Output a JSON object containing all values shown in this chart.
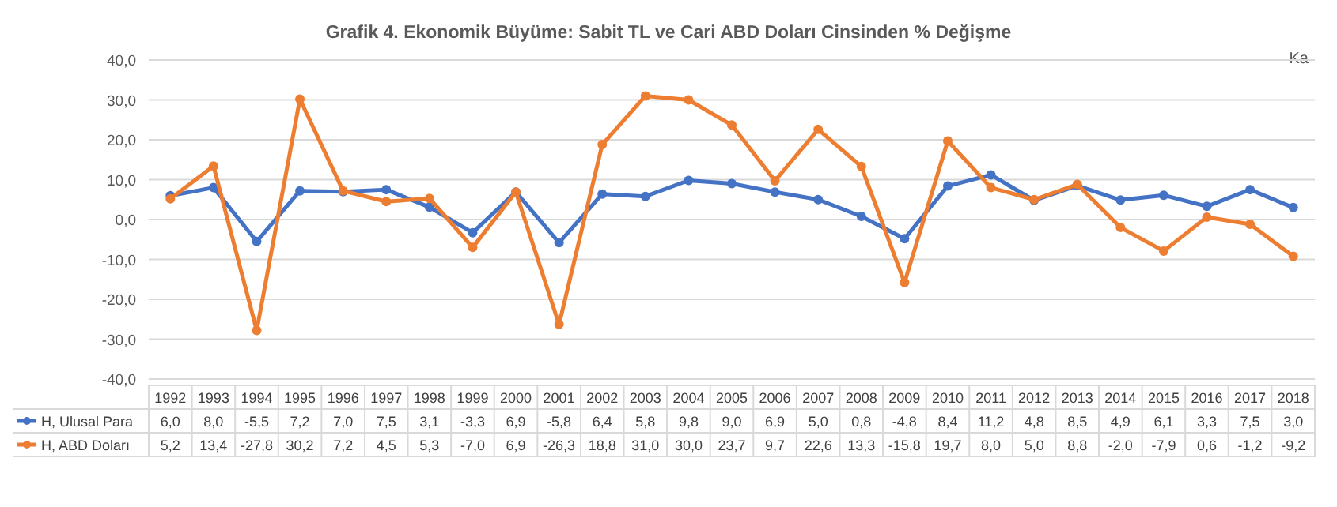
{
  "chart_data": {
    "type": "line",
    "title": "Grafik 4. Ekonomik Büyüme: Sabit TL ve Cari ABD Doları Cinsinden % Değişme",
    "annotations": [
      "Ka"
    ],
    "categories": [
      "1992",
      "1993",
      "1994",
      "1995",
      "1996",
      "1997",
      "1998",
      "1999",
      "2000",
      "2001",
      "2002",
      "2003",
      "2004",
      "2005",
      "2006",
      "2007",
      "2008",
      "2009",
      "2010",
      "2011",
      "2012",
      "2013",
      "2014",
      "2015",
      "2016",
      "2017",
      "2018"
    ],
    "ylim": [
      -40,
      40
    ],
    "yticks": [
      {
        "value": -40,
        "label": "-40,0"
      },
      {
        "value": -30,
        "label": "-30,0"
      },
      {
        "value": -20,
        "label": "-20,0"
      },
      {
        "value": -10,
        "label": "-10,0"
      },
      {
        "value": 0,
        "label": "0,0"
      },
      {
        "value": 10,
        "label": "10,0"
      },
      {
        "value": 20,
        "label": "20,0"
      },
      {
        "value": 30,
        "label": "30,0"
      },
      {
        "value": 40,
        "label": "40,0"
      }
    ],
    "grid": "y",
    "marker": "circle",
    "legend": "bottom",
    "series": [
      {
        "name": "H, Ulusal Para",
        "color": "#4472c4",
        "values": [
          6.0,
          8.0,
          -5.5,
          7.2,
          7.0,
          7.5,
          3.1,
          -3.3,
          6.9,
          -5.8,
          6.4,
          5.8,
          9.8,
          9.0,
          6.9,
          5.0,
          0.8,
          -4.8,
          8.4,
          11.2,
          4.8,
          8.5,
          4.9,
          6.1,
          3.3,
          7.5,
          3.0
        ],
        "value_labels": [
          "6,0",
          "8,0",
          "-5,5",
          "7,2",
          "7,0",
          "7,5",
          "3,1",
          "-3,3",
          "6,9",
          "-5,8",
          "6,4",
          "5,8",
          "9,8",
          "9,0",
          "6,9",
          "5,0",
          "0,8",
          "-4,8",
          "8,4",
          "11,2",
          "4,8",
          "8,5",
          "4,9",
          "6,1",
          "3,3",
          "7,5",
          "3,0"
        ]
      },
      {
        "name": "H, ABD Doları",
        "color": "#ed7d31",
        "values": [
          5.2,
          13.4,
          -27.8,
          30.2,
          7.2,
          4.5,
          5.3,
          -7.0,
          6.9,
          -26.3,
          18.8,
          31.0,
          30.0,
          23.7,
          9.7,
          22.6,
          13.3,
          -15.8,
          19.7,
          8.0,
          5.0,
          8.8,
          -2.0,
          -7.9,
          0.6,
          -1.2,
          -9.2
        ],
        "value_labels": [
          "5,2",
          "13,4",
          "-27,8",
          "30,2",
          "7,2",
          "4,5",
          "5,3",
          "-7,0",
          "6,9",
          "-26,3",
          "18,8",
          "31,0",
          "30,0",
          "23,7",
          "9,7",
          "22,6",
          "13,3",
          "-15,8",
          "19,7",
          "8,0",
          "5,0",
          "8,8",
          "-2,0",
          "-7,9",
          "0,6",
          "-1,2",
          "-9,2"
        ]
      }
    ]
  }
}
